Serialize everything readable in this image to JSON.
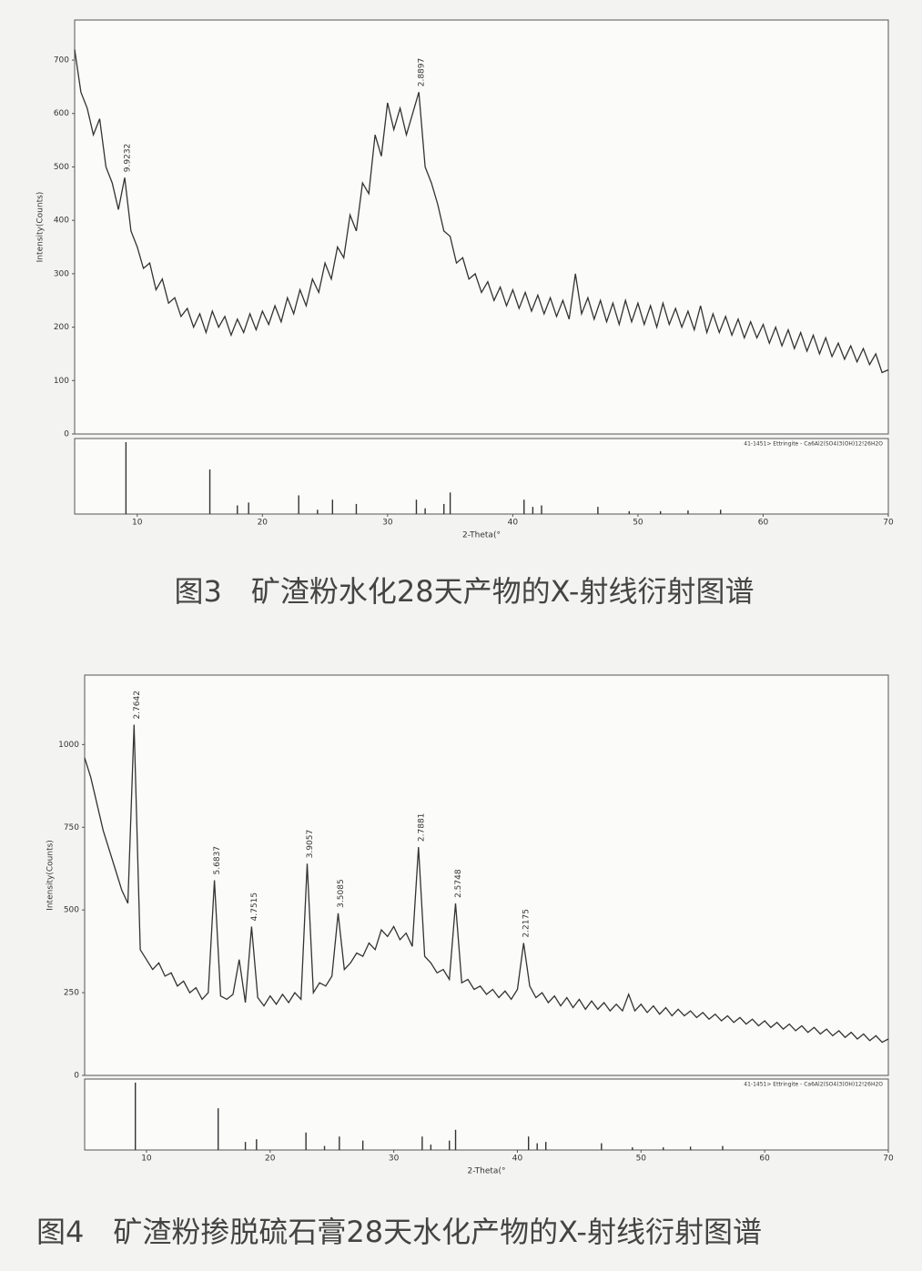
{
  "chart_data": [
    {
      "type": "line",
      "title": "图3　矿渣粉水化28天产物的X-射线衍射图谱",
      "xlabel": "2-Theta(°",
      "ylabel": "Intensity(Counts)",
      "xlim": [
        5,
        70
      ],
      "xticks": [
        10,
        20,
        30,
        40,
        50,
        60,
        70
      ],
      "ylim": [
        0,
        775
      ],
      "yticks": [
        0,
        100,
        200,
        300,
        400,
        500,
        600,
        700
      ],
      "color": "#333333",
      "x": [
        5,
        5.5,
        6,
        6.5,
        7,
        7.5,
        8,
        8.5,
        9,
        9.5,
        10,
        10.5,
        11,
        11.5,
        12,
        12.5,
        13,
        13.5,
        14,
        14.5,
        15,
        15.5,
        16,
        16.5,
        17,
        17.5,
        18,
        18.5,
        19,
        19.5,
        20,
        20.5,
        21,
        21.5,
        22,
        22.5,
        23,
        23.5,
        24,
        24.5,
        25,
        25.5,
        26,
        26.5,
        27,
        27.5,
        28,
        28.5,
        29,
        29.5,
        30,
        30.5,
        31,
        31.5,
        32,
        32.5,
        33,
        33.5,
        34,
        34.5,
        35,
        35.5,
        36,
        36.5,
        37,
        37.5,
        38,
        38.5,
        39,
        39.5,
        40,
        40.5,
        41,
        41.5,
        42,
        42.5,
        43,
        43.5,
        44,
        44.5,
        45,
        45.5,
        46,
        46.5,
        47,
        47.5,
        48,
        48.5,
        49,
        49.5,
        50,
        50.5,
        51,
        51.5,
        52,
        52.5,
        53,
        53.5,
        54,
        54.5,
        55,
        55.5,
        56,
        56.5,
        57,
        57.5,
        58,
        58.5,
        59,
        59.5,
        60,
        60.5,
        61,
        61.5,
        62,
        62.5,
        63,
        63.5,
        64,
        64.5,
        65,
        65.5,
        66,
        66.5,
        67,
        67.5,
        68,
        68.5,
        69,
        69.5,
        70
      ],
      "values": [
        720,
        640,
        610,
        560,
        590,
        500,
        470,
        420,
        480,
        380,
        350,
        310,
        320,
        270,
        290,
        245,
        255,
        220,
        235,
        200,
        225,
        190,
        230,
        200,
        220,
        185,
        215,
        190,
        225,
        195,
        230,
        205,
        240,
        210,
        255,
        225,
        270,
        240,
        290,
        265,
        320,
        290,
        350,
        330,
        410,
        380,
        470,
        450,
        560,
        520,
        620,
        570,
        610,
        560,
        600,
        640,
        500,
        470,
        430,
        380,
        370,
        320,
        330,
        290,
        300,
        265,
        285,
        250,
        275,
        240,
        270,
        235,
        265,
        230,
        260,
        225,
        255,
        220,
        250,
        215,
        300,
        225,
        255,
        215,
        250,
        210,
        245,
        205,
        250,
        210,
        245,
        205,
        240,
        200,
        245,
        205,
        235,
        200,
        230,
        195,
        240,
        190,
        225,
        190,
        220,
        185,
        215,
        180,
        210,
        180,
        205,
        170,
        200,
        165,
        195,
        160,
        190,
        155,
        185,
        150,
        180,
        145,
        170,
        140,
        165,
        135,
        160,
        130,
        150,
        115,
        120
      ],
      "peak_labels": [
        {
          "x": 9,
          "y": 480,
          "label": "9.9232"
        },
        {
          "x": 32.5,
          "y": 640,
          "label": "2.8897"
        }
      ],
      "reference": {
        "name": "41-1451> Ettringite - Ca6Al2(SO4)3(OH)12!26H2O",
        "ylim": [
          0,
          100
        ],
        "x": [
          9.1,
          15.8,
          18.0,
          18.9,
          22.9,
          24.4,
          25.6,
          27.5,
          32.3,
          33.0,
          34.5,
          35.0,
          40.9,
          41.6,
          42.3,
          46.8,
          49.3,
          51.8,
          54.0,
          56.6
        ],
        "values": [
          100,
          62,
          12,
          16,
          26,
          6,
          20,
          14,
          20,
          8,
          14,
          30,
          20,
          10,
          12,
          10,
          4,
          4,
          5,
          6
        ]
      }
    },
    {
      "type": "line",
      "title": "图4　矿渣粉掺脱硫石膏28天水化产物的X-射线衍射图谱",
      "xlabel": "2-Theta(°",
      "ylabel": "Intensity(Counts)",
      "xlim": [
        5,
        70
      ],
      "xticks": [
        10,
        20,
        30,
        40,
        50,
        60,
        70
      ],
      "ylim": [
        0,
        1210
      ],
      "yticks": [
        0,
        250,
        500,
        750,
        1000
      ],
      "color": "#333333",
      "x": [
        5,
        5.5,
        6,
        6.5,
        7,
        7.5,
        8,
        8.5,
        9,
        9.5,
        10,
        10.5,
        11,
        11.5,
        12,
        12.5,
        13,
        13.5,
        14,
        14.5,
        15,
        15.5,
        16,
        16.5,
        17,
        17.5,
        18,
        18.5,
        19,
        19.5,
        20,
        20.5,
        21,
        21.5,
        22,
        22.5,
        23,
        23.5,
        24,
        24.5,
        25,
        25.5,
        26,
        26.5,
        27,
        27.5,
        28,
        28.5,
        29,
        29.5,
        30,
        30.5,
        31,
        31.5,
        32,
        32.5,
        33,
        33.5,
        34,
        34.5,
        35,
        35.5,
        36,
        36.5,
        37,
        37.5,
        38,
        38.5,
        39,
        39.5,
        40,
        40.5,
        41,
        41.5,
        42,
        42.5,
        43,
        43.5,
        44,
        44.5,
        45,
        45.5,
        46,
        46.5,
        47,
        47.5,
        48,
        48.5,
        49,
        49.5,
        50,
        50.5,
        51,
        51.5,
        52,
        52.5,
        53,
        53.5,
        54,
        54.5,
        55,
        55.5,
        56,
        56.5,
        57,
        57.5,
        58,
        58.5,
        59,
        59.5,
        60,
        60.5,
        61,
        61.5,
        62,
        62.5,
        63,
        63.5,
        64,
        64.5,
        65,
        65.5,
        66,
        66.5,
        67,
        67.5,
        68,
        68.5,
        69,
        69.5,
        70
      ],
      "values": [
        960,
        900,
        820,
        740,
        680,
        620,
        560,
        520,
        1060,
        380,
        350,
        320,
        340,
        300,
        310,
        270,
        285,
        250,
        265,
        230,
        250,
        590,
        240,
        230,
        245,
        350,
        220,
        450,
        235,
        210,
        240,
        215,
        245,
        220,
        250,
        230,
        640,
        250,
        280,
        270,
        300,
        490,
        320,
        340,
        370,
        360,
        400,
        380,
        440,
        420,
        450,
        410,
        430,
        390,
        690,
        360,
        340,
        310,
        320,
        290,
        520,
        280,
        290,
        260,
        270,
        245,
        260,
        235,
        255,
        230,
        260,
        400,
        270,
        235,
        250,
        220,
        240,
        210,
        235,
        205,
        230,
        200,
        225,
        200,
        220,
        195,
        215,
        195,
        245,
        195,
        215,
        190,
        210,
        185,
        205,
        180,
        200,
        180,
        195,
        175,
        190,
        170,
        185,
        165,
        180,
        160,
        175,
        155,
        170,
        150,
        165,
        145,
        160,
        140,
        155,
        135,
        150,
        130,
        145,
        125,
        140,
        120,
        135,
        115,
        130,
        110,
        125,
        105,
        120,
        100,
        110
      ],
      "peak_labels": [
        {
          "x": 9,
          "y": 1060,
          "label": "2.7642"
        },
        {
          "x": 15.5,
          "y": 590,
          "label": "5.6837"
        },
        {
          "x": 18.5,
          "y": 450,
          "label": "4.7515"
        },
        {
          "x": 23,
          "y": 640,
          "label": "3.9057"
        },
        {
          "x": 25.5,
          "y": 490,
          "label": "3.5085"
        },
        {
          "x": 32,
          "y": 690,
          "label": "2.7881"
        },
        {
          "x": 35,
          "y": 520,
          "label": "2.5748"
        },
        {
          "x": 40.5,
          "y": 400,
          "label": "2.2175"
        }
      ],
      "reference": {
        "name": "41-1451> Ettringite - Ca6Al2(SO4)3(OH)12!26H2O",
        "ylim": [
          0,
          100
        ],
        "x": [
          9.1,
          15.8,
          18.0,
          18.9,
          22.9,
          24.4,
          25.6,
          27.5,
          32.3,
          33.0,
          34.5,
          35.0,
          40.9,
          41.6,
          42.3,
          46.8,
          49.3,
          51.8,
          54.0,
          56.6
        ],
        "values": [
          100,
          62,
          12,
          16,
          26,
          6,
          20,
          14,
          20,
          8,
          14,
          30,
          20,
          10,
          12,
          10,
          4,
          4,
          5,
          6
        ]
      }
    }
  ]
}
